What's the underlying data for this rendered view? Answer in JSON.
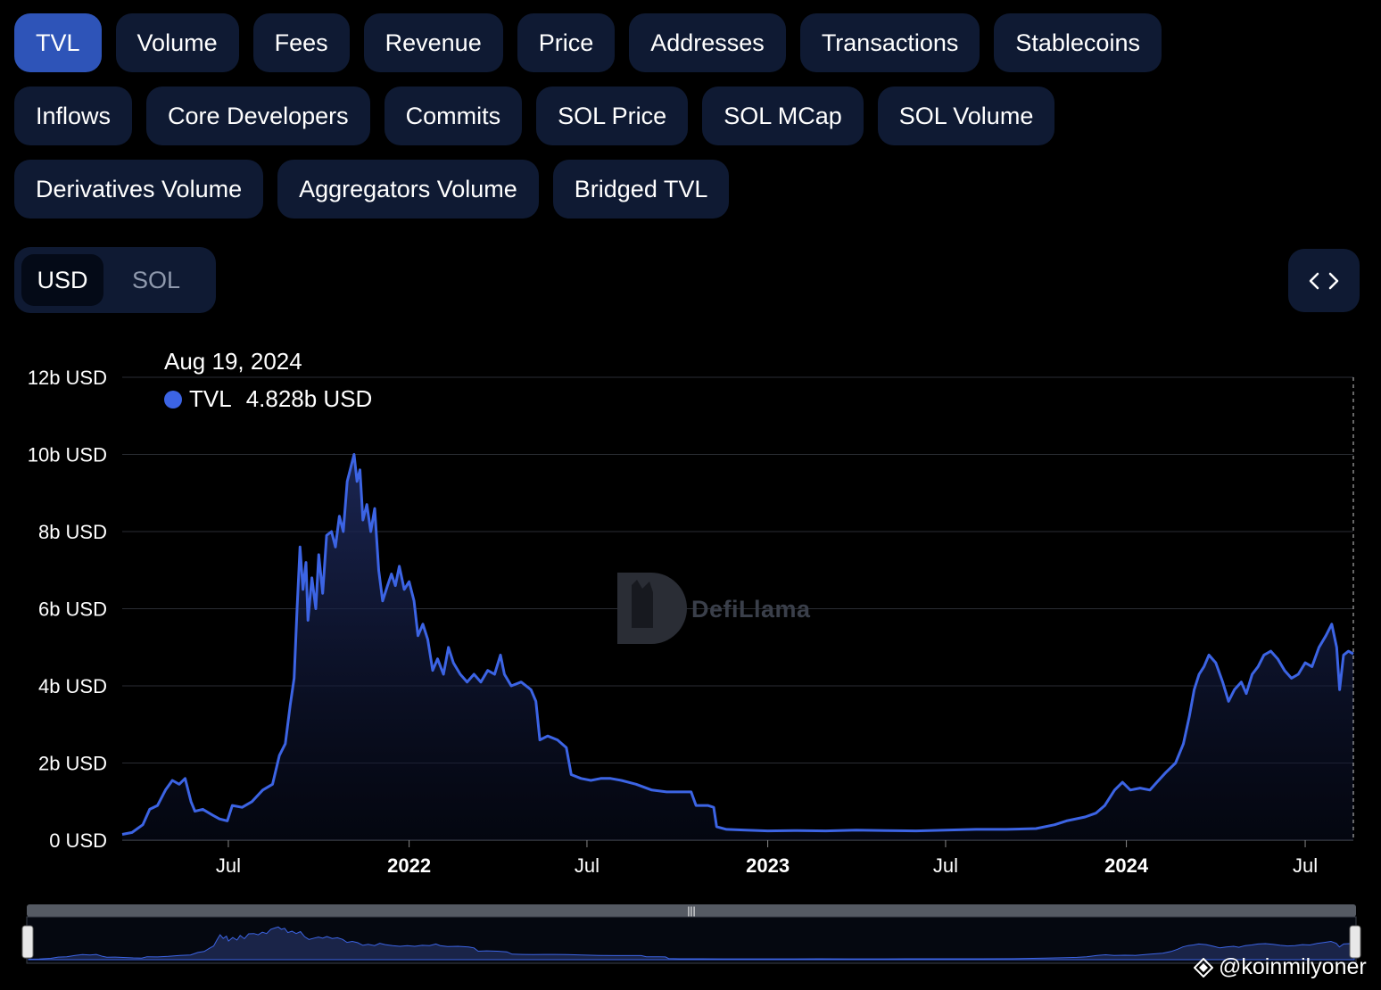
{
  "tabs_row1": [
    "TVL",
    "Volume",
    "Fees",
    "Revenue",
    "Price",
    "Addresses",
    "Transactions",
    "Stablecoins"
  ],
  "tabs_row2": [
    "Inflows",
    "Core Developers",
    "Commits",
    "SOL Price",
    "SOL MCap",
    "SOL Volume"
  ],
  "tabs_row3": [
    "Derivatives Volume",
    "Aggregators Volume",
    "Bridged TVL"
  ],
  "active_tab": "TVL",
  "currency_toggle": {
    "selected": "USD",
    "other": "SOL"
  },
  "tooltip": {
    "date": "Aug 19, 2024",
    "series": "TVL",
    "value": "4.828b USD"
  },
  "watermark": "DefiLlama",
  "credit": "@koinmilyoner",
  "colors": {
    "line": "#3c64e4",
    "active_tab": "#2e54b8",
    "tab_bg": "#0f1a33"
  },
  "chart_data": {
    "type": "area",
    "series": [
      {
        "name": "TVL",
        "unit": "USD billions"
      }
    ],
    "y_ticks": [
      "0 USD",
      "2b USD",
      "4b USD",
      "6b USD",
      "8b USD",
      "10b USD",
      "12b USD"
    ],
    "x_ticks": [
      "Jul",
      "2022",
      "Jul",
      "2023",
      "Jul",
      "2024",
      "Jul"
    ],
    "ylim": [
      0,
      12
    ],
    "xlim": [
      "2021-03-15",
      "2024-08-19"
    ],
    "grid": true,
    "points": [
      [
        "2021-03-15",
        0.15
      ],
      [
        "2021-03-25",
        0.2
      ],
      [
        "2021-04-05",
        0.4
      ],
      [
        "2021-04-12",
        0.8
      ],
      [
        "2021-04-20",
        0.9
      ],
      [
        "2021-04-28",
        1.3
      ],
      [
        "2021-05-05",
        1.55
      ],
      [
        "2021-05-12",
        1.45
      ],
      [
        "2021-05-18",
        1.6
      ],
      [
        "2021-05-24",
        1.0
      ],
      [
        "2021-05-28",
        0.75
      ],
      [
        "2021-06-05",
        0.8
      ],
      [
        "2021-06-15",
        0.65
      ],
      [
        "2021-06-22",
        0.55
      ],
      [
        "2021-06-30",
        0.5
      ],
      [
        "2021-07-05",
        0.9
      ],
      [
        "2021-07-15",
        0.85
      ],
      [
        "2021-07-25",
        1.0
      ],
      [
        "2021-08-05",
        1.3
      ],
      [
        "2021-08-15",
        1.45
      ],
      [
        "2021-08-22",
        2.2
      ],
      [
        "2021-08-28",
        2.5
      ],
      [
        "2021-09-02",
        3.5
      ],
      [
        "2021-09-06",
        4.2
      ],
      [
        "2021-09-09",
        6.0
      ],
      [
        "2021-09-12",
        7.6
      ],
      [
        "2021-09-15",
        6.5
      ],
      [
        "2021-09-18",
        7.2
      ],
      [
        "2021-09-20",
        5.7
      ],
      [
        "2021-09-24",
        6.8
      ],
      [
        "2021-09-28",
        6.0
      ],
      [
        "2021-10-01",
        7.4
      ],
      [
        "2021-10-05",
        6.4
      ],
      [
        "2021-10-09",
        7.9
      ],
      [
        "2021-10-14",
        8.0
      ],
      [
        "2021-10-18",
        7.6
      ],
      [
        "2021-10-22",
        8.4
      ],
      [
        "2021-10-26",
        8.0
      ],
      [
        "2021-10-30",
        9.3
      ],
      [
        "2021-11-03",
        9.7
      ],
      [
        "2021-11-06",
        10.0
      ],
      [
        "2021-11-09",
        9.3
      ],
      [
        "2021-11-12",
        9.6
      ],
      [
        "2021-11-15",
        8.3
      ],
      [
        "2021-11-19",
        8.7
      ],
      [
        "2021-11-23",
        8.0
      ],
      [
        "2021-11-27",
        8.6
      ],
      [
        "2021-12-01",
        7.0
      ],
      [
        "2021-12-05",
        6.2
      ],
      [
        "2021-12-10",
        6.6
      ],
      [
        "2021-12-14",
        6.9
      ],
      [
        "2021-12-18",
        6.6
      ],
      [
        "2021-12-22",
        7.1
      ],
      [
        "2021-12-27",
        6.5
      ],
      [
        "2022-01-01",
        6.7
      ],
      [
        "2022-01-06",
        6.2
      ],
      [
        "2022-01-10",
        5.3
      ],
      [
        "2022-01-15",
        5.6
      ],
      [
        "2022-01-20",
        5.2
      ],
      [
        "2022-01-25",
        4.4
      ],
      [
        "2022-01-30",
        4.7
      ],
      [
        "2022-02-05",
        4.3
      ],
      [
        "2022-02-10",
        5.0
      ],
      [
        "2022-02-15",
        4.6
      ],
      [
        "2022-02-22",
        4.3
      ],
      [
        "2022-03-01",
        4.1
      ],
      [
        "2022-03-08",
        4.3
      ],
      [
        "2022-03-15",
        4.1
      ],
      [
        "2022-03-22",
        4.4
      ],
      [
        "2022-03-29",
        4.3
      ],
      [
        "2022-04-04",
        4.8
      ],
      [
        "2022-04-08",
        4.3
      ],
      [
        "2022-04-15",
        4.0
      ],
      [
        "2022-04-25",
        4.1
      ],
      [
        "2022-05-05",
        3.9
      ],
      [
        "2022-05-10",
        3.6
      ],
      [
        "2022-05-14",
        2.6
      ],
      [
        "2022-05-22",
        2.7
      ],
      [
        "2022-06-01",
        2.6
      ],
      [
        "2022-06-10",
        2.4
      ],
      [
        "2022-06-15",
        1.7
      ],
      [
        "2022-06-25",
        1.6
      ],
      [
        "2022-07-05",
        1.55
      ],
      [
        "2022-07-15",
        1.6
      ],
      [
        "2022-07-25",
        1.6
      ],
      [
        "2022-08-05",
        1.55
      ],
      [
        "2022-08-20",
        1.45
      ],
      [
        "2022-09-05",
        1.3
      ],
      [
        "2022-09-20",
        1.25
      ],
      [
        "2022-10-05",
        1.25
      ],
      [
        "2022-10-15",
        1.25
      ],
      [
        "2022-10-20",
        0.9
      ],
      [
        "2022-11-01",
        0.9
      ],
      [
        "2022-11-07",
        0.85
      ],
      [
        "2022-11-10",
        0.35
      ],
      [
        "2022-11-20",
        0.28
      ],
      [
        "2022-12-10",
        0.26
      ],
      [
        "2023-01-01",
        0.24
      ],
      [
        "2023-02-01",
        0.25
      ],
      [
        "2023-03-01",
        0.24
      ],
      [
        "2023-04-01",
        0.26
      ],
      [
        "2023-05-01",
        0.25
      ],
      [
        "2023-06-01",
        0.24
      ],
      [
        "2023-07-01",
        0.26
      ],
      [
        "2023-08-01",
        0.28
      ],
      [
        "2023-09-01",
        0.28
      ],
      [
        "2023-10-01",
        0.3
      ],
      [
        "2023-10-20",
        0.4
      ],
      [
        "2023-11-01",
        0.5
      ],
      [
        "2023-11-20",
        0.6
      ],
      [
        "2023-12-01",
        0.7
      ],
      [
        "2023-12-10",
        0.9
      ],
      [
        "2023-12-20",
        1.3
      ],
      [
        "2023-12-28",
        1.5
      ],
      [
        "2024-01-05",
        1.3
      ],
      [
        "2024-01-15",
        1.35
      ],
      [
        "2024-01-25",
        1.3
      ],
      [
        "2024-02-01",
        1.5
      ],
      [
        "2024-02-10",
        1.75
      ],
      [
        "2024-02-20",
        2.0
      ],
      [
        "2024-02-28",
        2.5
      ],
      [
        "2024-03-05",
        3.2
      ],
      [
        "2024-03-10",
        3.9
      ],
      [
        "2024-03-15",
        4.3
      ],
      [
        "2024-03-20",
        4.5
      ],
      [
        "2024-03-25",
        4.8
      ],
      [
        "2024-04-01",
        4.6
      ],
      [
        "2024-04-08",
        4.1
      ],
      [
        "2024-04-14",
        3.6
      ],
      [
        "2024-04-20",
        3.9
      ],
      [
        "2024-04-27",
        4.1
      ],
      [
        "2024-05-02",
        3.8
      ],
      [
        "2024-05-08",
        4.3
      ],
      [
        "2024-05-14",
        4.5
      ],
      [
        "2024-05-20",
        4.8
      ],
      [
        "2024-05-27",
        4.9
      ],
      [
        "2024-06-03",
        4.7
      ],
      [
        "2024-06-10",
        4.4
      ],
      [
        "2024-06-17",
        4.2
      ],
      [
        "2024-06-24",
        4.3
      ],
      [
        "2024-07-01",
        4.6
      ],
      [
        "2024-07-08",
        4.5
      ],
      [
        "2024-07-15",
        5.0
      ],
      [
        "2024-07-22",
        5.3
      ],
      [
        "2024-07-28",
        5.6
      ],
      [
        "2024-08-02",
        5.0
      ],
      [
        "2024-08-05",
        3.9
      ],
      [
        "2024-08-09",
        4.8
      ],
      [
        "2024-08-14",
        4.9
      ],
      [
        "2024-08-19",
        4.828
      ]
    ]
  }
}
